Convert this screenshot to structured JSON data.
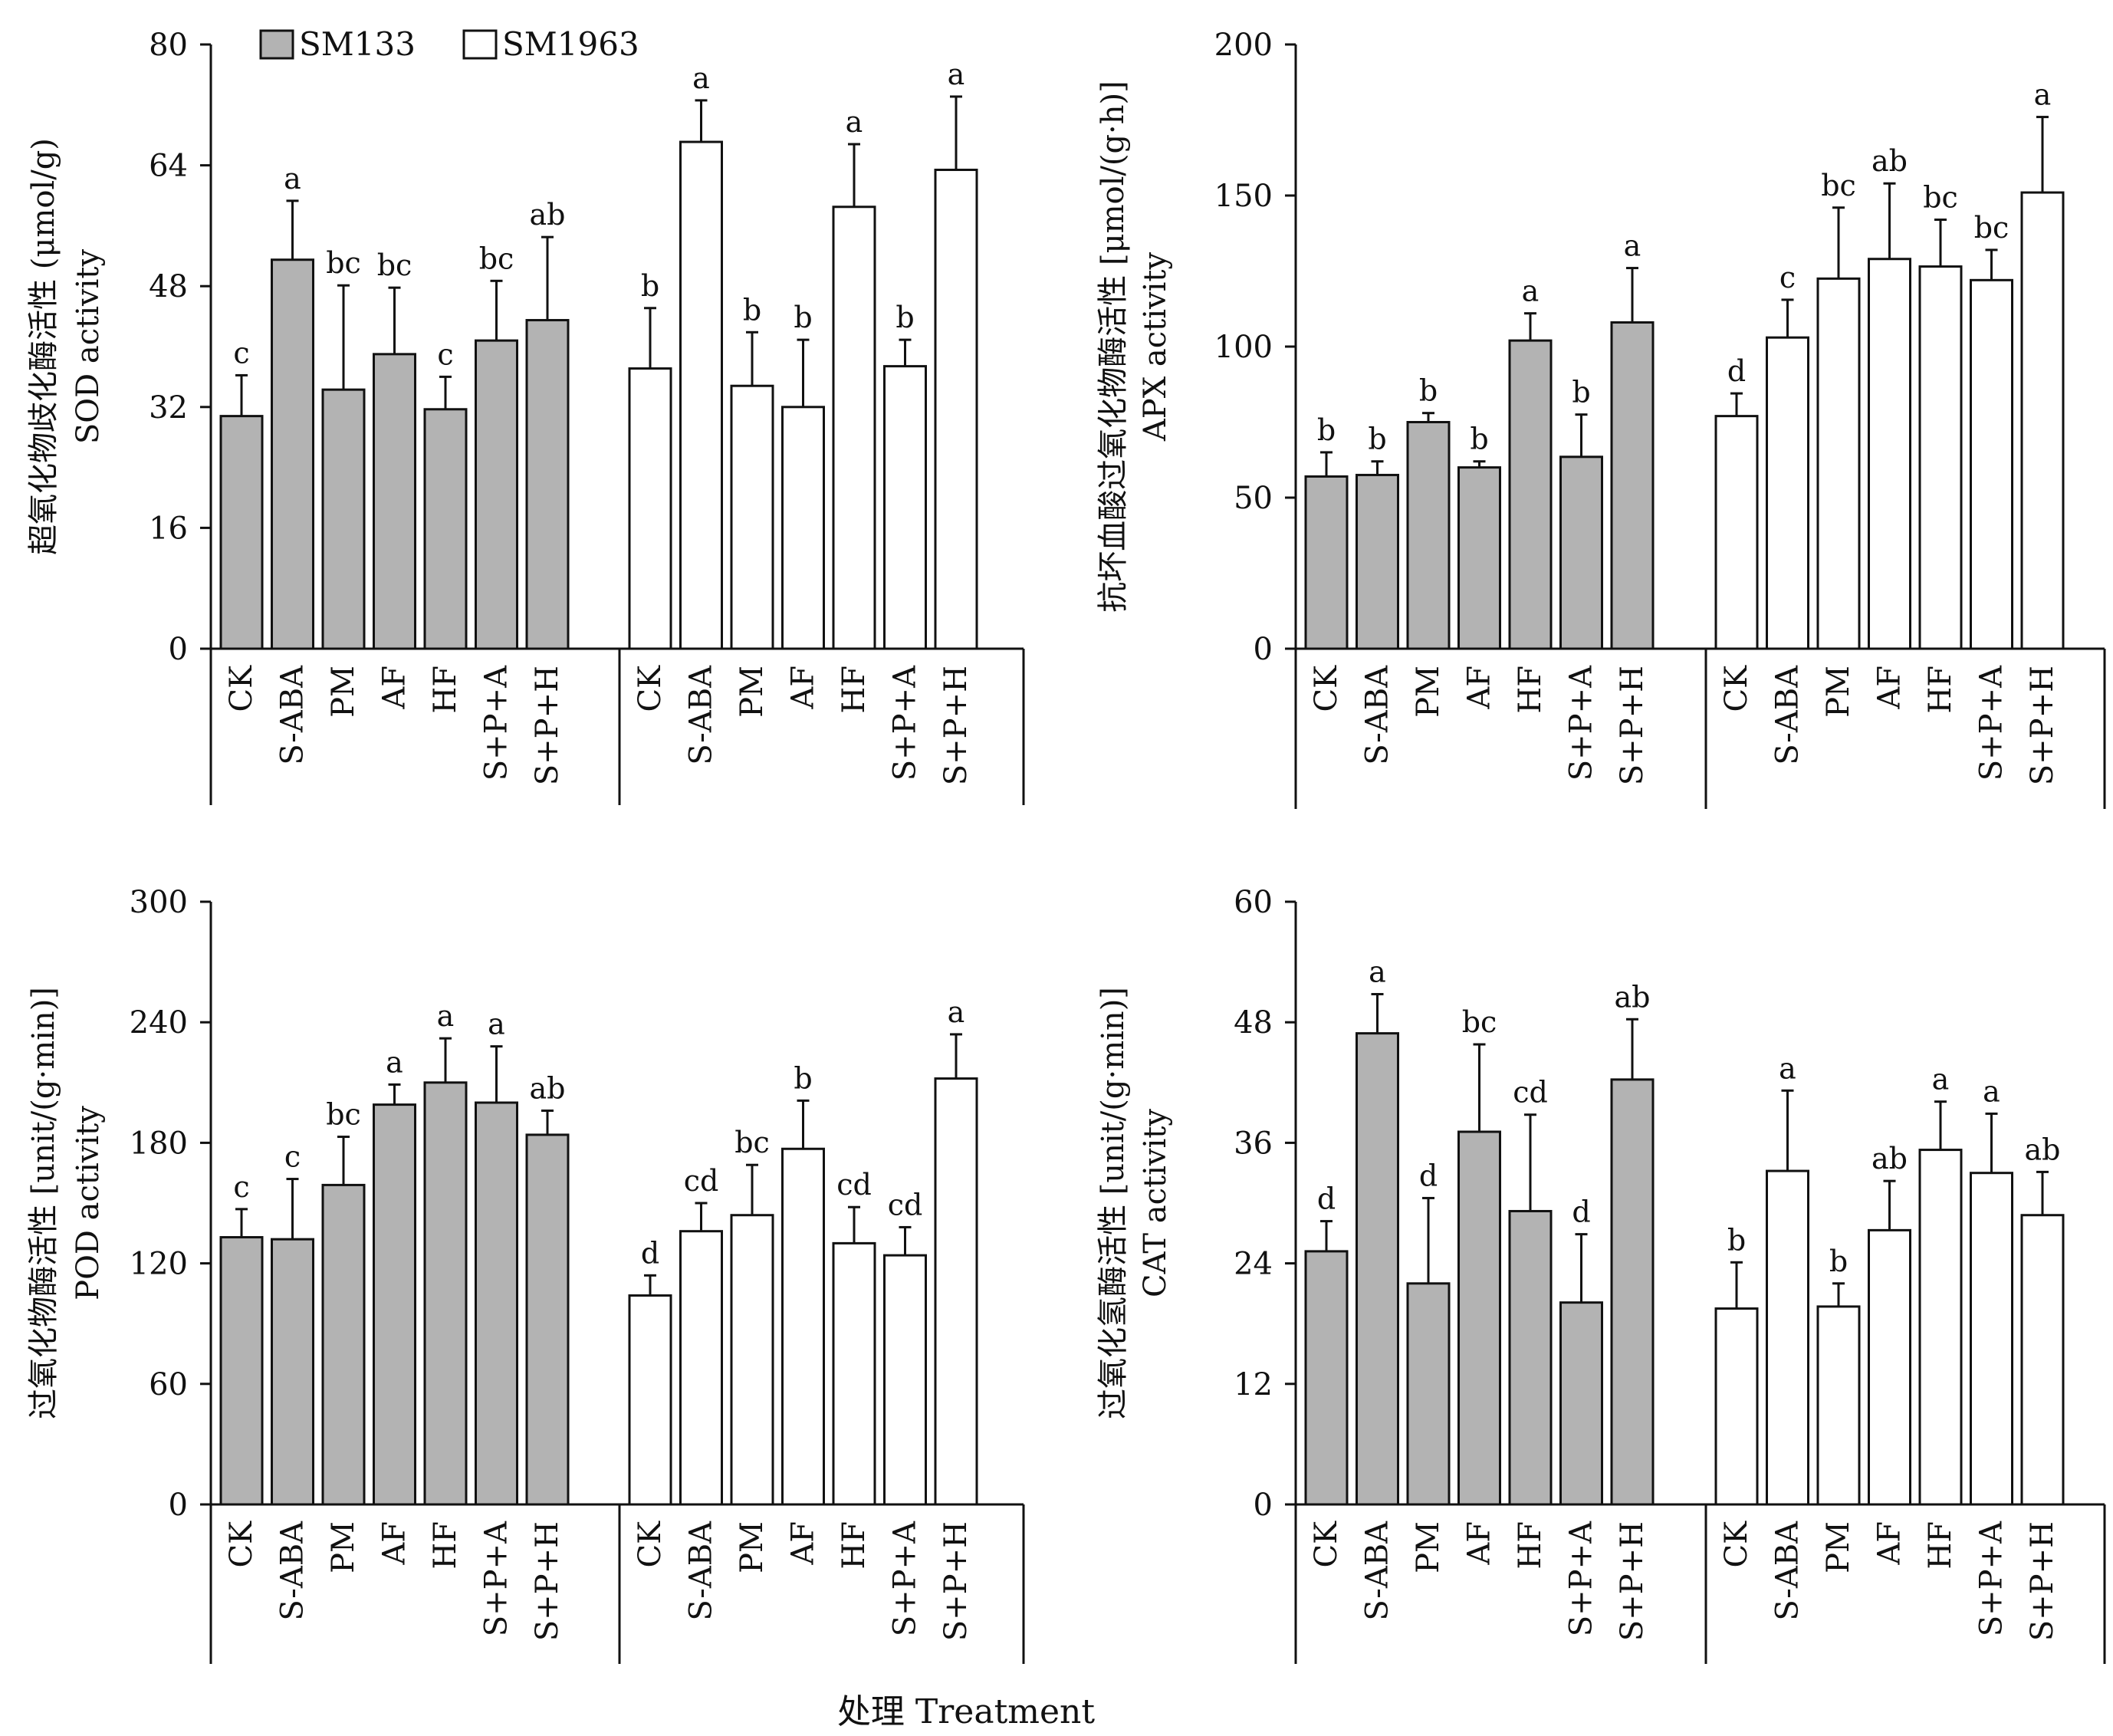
{
  "xlabel": "处理 Treatment",
  "legend": [
    {
      "name": "SM133",
      "color": "#b3b3b3"
    },
    {
      "name": "SM1963",
      "color": "#ffffff"
    }
  ],
  "chart_data": [
    {
      "type": "bar",
      "id": "sod",
      "ylabel_cn": "超氧化物歧化酶活性 (μmol/g)",
      "ylabel_en": "SOD activity",
      "ylim": [
        0,
        80
      ],
      "yticks": [
        0,
        16,
        32,
        48,
        64,
        80
      ],
      "categories": [
        "CK",
        "S-ABA",
        "PM",
        "AF",
        "HF",
        "S+P+A",
        "S+P+H"
      ],
      "series": [
        {
          "name": "SM133",
          "values": [
            30.8,
            51.5,
            34.3,
            39.0,
            31.7,
            40.8,
            43.5
          ],
          "errors": [
            5.4,
            7.8,
            13.8,
            8.8,
            4.3,
            7.9,
            11.0
          ],
          "letters": [
            "c",
            "a",
            "bc",
            "bc",
            "c",
            "bc",
            "ab"
          ]
        },
        {
          "name": "SM1963",
          "values": [
            37.1,
            67.1,
            34.8,
            32.0,
            58.5,
            37.4,
            63.4
          ],
          "errors": [
            8.0,
            5.5,
            7.1,
            8.9,
            8.3,
            3.5,
            9.7
          ],
          "letters": [
            "b",
            "a",
            "b",
            "b",
            "a",
            "b",
            "a"
          ]
        }
      ]
    },
    {
      "type": "bar",
      "id": "apx",
      "ylabel_cn": "抗坏血酸过氧化物酶活性 [μmol/(g·h)]",
      "ylabel_en": "APX activity",
      "ylim": [
        0,
        200
      ],
      "yticks": [
        0,
        50,
        100,
        150,
        200
      ],
      "categories": [
        "CK",
        "S-ABA",
        "PM",
        "AF",
        "HF",
        "S+P+A",
        "S+P+H"
      ],
      "series": [
        {
          "name": "SM133",
          "values": [
            57,
            57.5,
            75,
            60,
            102,
            63.5,
            108
          ],
          "errors": [
            8,
            4.5,
            3,
            2,
            9,
            14,
            18
          ],
          "letters": [
            "b",
            "b",
            "b",
            "b",
            "a",
            "b",
            "a"
          ]
        },
        {
          "name": "SM1963",
          "values": [
            77,
            103,
            122.5,
            129,
            126.5,
            122,
            151
          ],
          "errors": [
            7.5,
            12.5,
            23.5,
            25,
            15.5,
            10,
            25
          ],
          "letters": [
            "d",
            "c",
            "bc",
            "ab",
            "bc",
            "bc",
            "a"
          ]
        }
      ]
    },
    {
      "type": "bar",
      "id": "pod",
      "ylabel_cn": "过氧化物酶活性 [unit/(g·min)]",
      "ylabel_en": "POD activity",
      "ylim": [
        0,
        300
      ],
      "yticks": [
        0,
        60,
        120,
        180,
        240,
        300
      ],
      "categories": [
        "CK",
        "S-ABA",
        "PM",
        "AF",
        "HF",
        "S+P+A",
        "S+P+H"
      ],
      "series": [
        {
          "name": "SM133",
          "values": [
            133,
            132,
            159,
            199,
            210,
            200,
            184
          ],
          "errors": [
            14,
            30,
            24,
            10,
            22,
            28,
            12
          ],
          "letters": [
            "c",
            "c",
            "bc",
            "a",
            "a",
            "a",
            "ab"
          ]
        },
        {
          "name": "SM1963",
          "values": [
            104,
            136,
            144,
            177,
            130,
            124,
            212
          ],
          "errors": [
            10,
            14,
            25,
            24,
            18,
            14,
            22
          ],
          "letters": [
            "d",
            "cd",
            "bc",
            "b",
            "cd",
            "cd",
            "a"
          ]
        }
      ]
    },
    {
      "type": "bar",
      "id": "cat",
      "ylabel_cn": "过氧化氢酶活性 [unit/(g·min)]",
      "ylabel_en": "CAT activity",
      "ylim": [
        0,
        60
      ],
      "yticks": [
        0,
        12,
        24,
        36,
        48,
        60
      ],
      "categories": [
        "CK",
        "S-ABA",
        "PM",
        "AF",
        "HF",
        "S+P+A",
        "S+P+H"
      ],
      "series": [
        {
          "name": "SM133",
          "values": [
            25.2,
            46.9,
            22.0,
            37.1,
            29.2,
            20.1,
            42.3
          ],
          "errors": [
            3.0,
            3.9,
            8.5,
            8.7,
            9.6,
            6.8,
            6.0
          ],
          "letters": [
            "d",
            "a",
            "d",
            "bc",
            "cd",
            "d",
            "ab"
          ]
        },
        {
          "name": "SM1963",
          "values": [
            19.5,
            33.2,
            19.7,
            27.3,
            35.3,
            33.0,
            28.8
          ],
          "errors": [
            4.6,
            8.0,
            2.3,
            4.9,
            4.8,
            5.9,
            4.3
          ],
          "letters": [
            "b",
            "a",
            "b",
            "ab",
            "a",
            "a",
            "ab"
          ]
        }
      ]
    }
  ]
}
